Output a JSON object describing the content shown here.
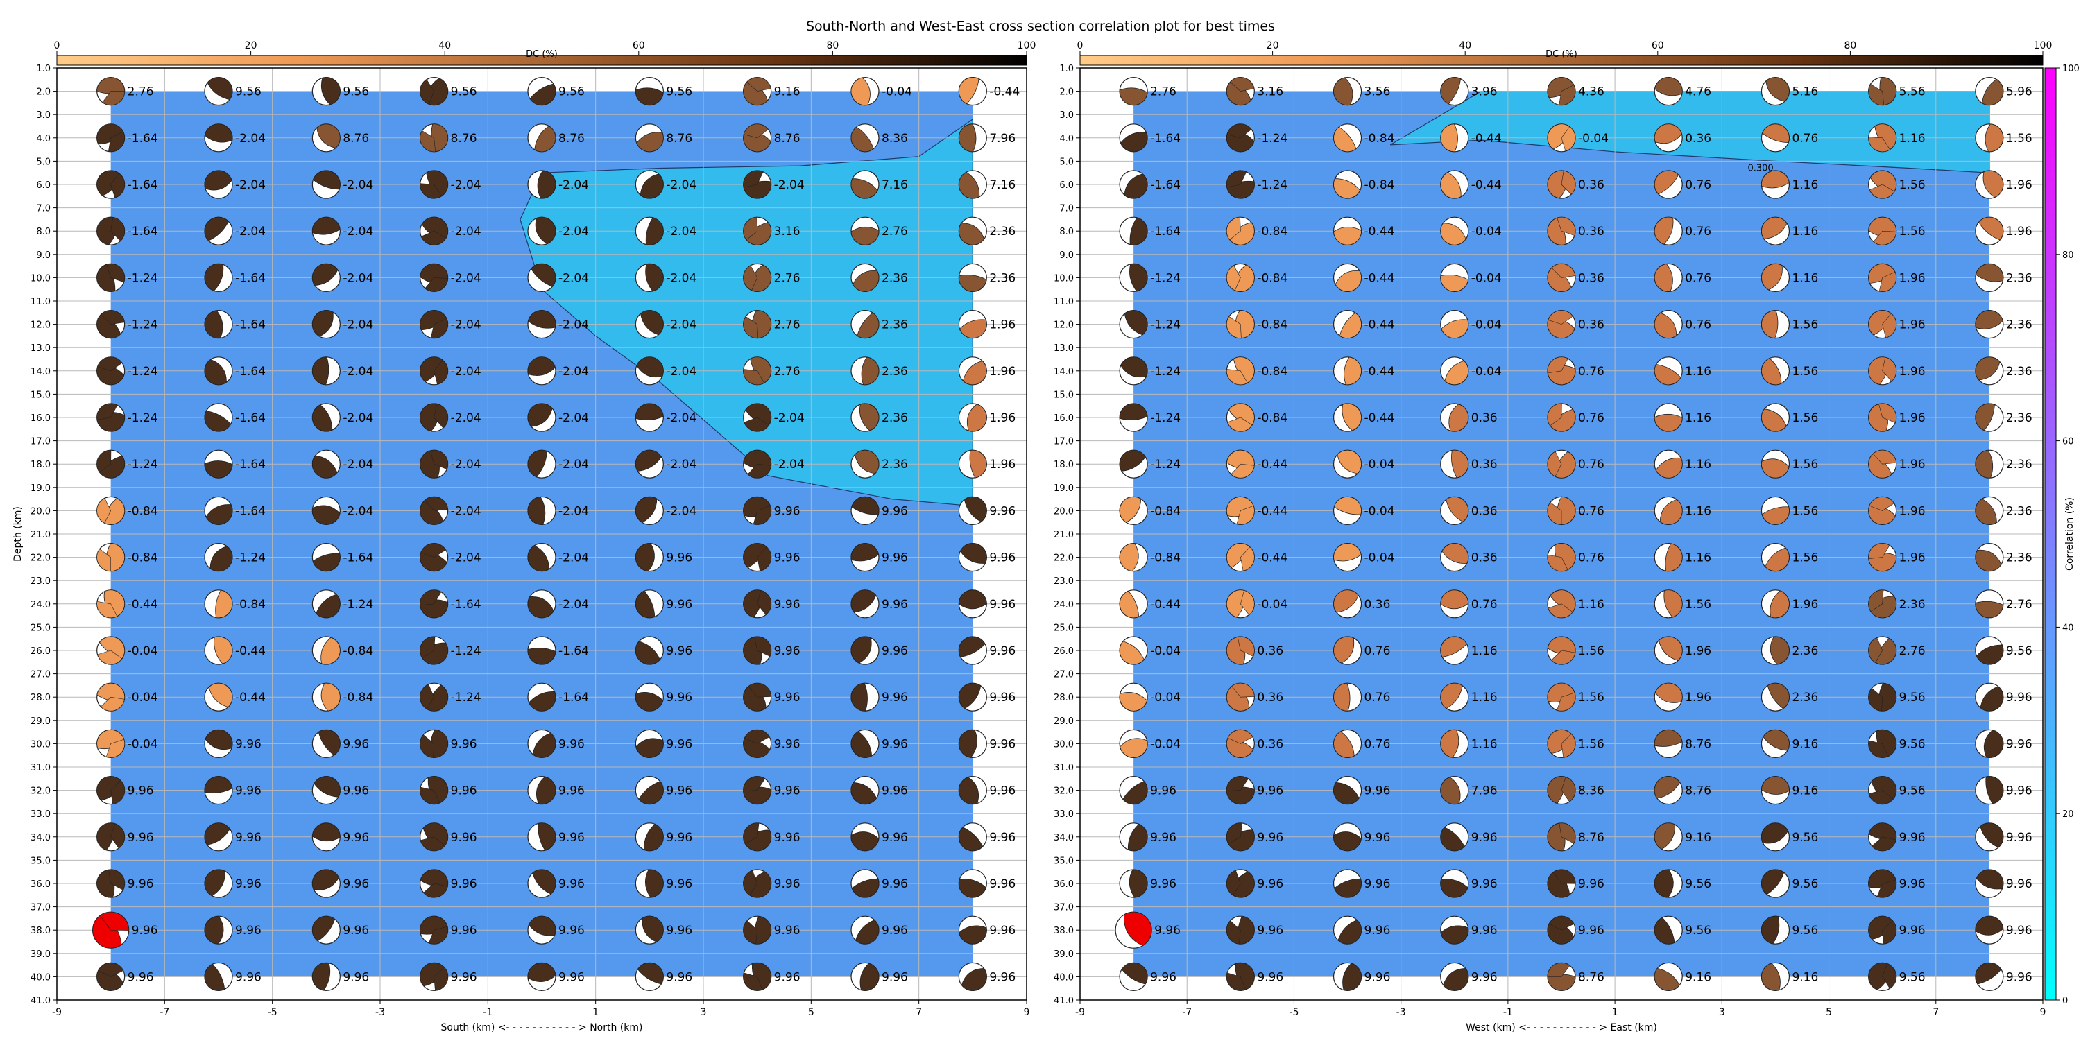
{
  "title": "South-North and West-East cross section correlation plot for best times",
  "colors": {
    "background_low": "#5599ee",
    "background_high": "#33bbee",
    "grid": "#b8b8b8",
    "beachball_outline": "#222222",
    "best_solution": "#ee0000"
  },
  "dc_colorbar": {
    "label": "DC (%)",
    "ticks": [
      "0",
      "20",
      "40",
      "60",
      "80",
      "100"
    ],
    "stops": [
      "#ffcc88",
      "#ee9955",
      "#aa6633",
      "#663311",
      "#000000"
    ]
  },
  "correlation_colorbar": {
    "label": "Correlation (%)",
    "ticks": [
      "0",
      "20",
      "40",
      "60",
      "80",
      "100"
    ],
    "stops": [
      "#00ffff",
      "#ff00ff"
    ]
  },
  "chart_data": [
    {
      "type": "heatmap",
      "name": "south-north",
      "xlabel": "South (km) <- - - - - - - - - - - > North (km)",
      "ylabel": "Depth (km)",
      "xlim": [
        -9,
        9
      ],
      "ylim": [
        41,
        1
      ],
      "xticks": [
        "-9",
        "-7",
        "-5",
        "-3",
        "-1",
        "1",
        "3",
        "5",
        "7",
        "9"
      ],
      "yticks": [
        "1.0",
        "2.0",
        "3.0",
        "4.0",
        "5.0",
        "6.0",
        "7.0",
        "8.0",
        "9.0",
        "10.0",
        "11.0",
        "12.0",
        "13.0",
        "14.0",
        "15.0",
        "16.0",
        "17.0",
        "18.0",
        "19.0",
        "20.0",
        "21.0",
        "22.0",
        "23.0",
        "24.0",
        "25.0",
        "26.0",
        "27.0",
        "28.0",
        "29.0",
        "30.0",
        "31.0",
        "32.0",
        "33.0",
        "34.0",
        "35.0",
        "36.0",
        "37.0",
        "38.0",
        "39.0",
        "40.0",
        "41.0"
      ],
      "x_positions": [
        -8,
        -6,
        -4,
        -2,
        0,
        2,
        4,
        6,
        8
      ],
      "depths": [
        2,
        4,
        6,
        8,
        10,
        12,
        14,
        16,
        18,
        20,
        22,
        24,
        26,
        28,
        30,
        32,
        34,
        36,
        38,
        40
      ],
      "contour_label": "",
      "contour_polygon": [
        [
          8,
          3.2
        ],
        [
          7,
          4.8
        ],
        [
          4.8,
          5.2
        ],
        [
          2.2,
          5.3
        ],
        [
          0,
          5.5
        ],
        [
          -0.4,
          7.5
        ],
        [
          0,
          10.5
        ],
        [
          1,
          12.5
        ],
        [
          2.2,
          14.5
        ],
        [
          3.2,
          16.5
        ],
        [
          4.2,
          18.5
        ],
        [
          6.5,
          19.5
        ],
        [
          8,
          19.8
        ]
      ],
      "labels": [
        [
          "2.76",
          "9.56",
          "9.56",
          "9.56",
          "9.56",
          "9.56",
          "9.16",
          "-0.04",
          "-0.44"
        ],
        [
          "-1.64",
          "-2.04",
          "8.76",
          "8.76",
          "8.76",
          "8.76",
          "8.76",
          "8.36",
          "7.96"
        ],
        [
          "-1.64",
          "-2.04",
          "-2.04",
          "-2.04",
          "-2.04",
          "-2.04",
          "-2.04",
          "7.16",
          "7.16"
        ],
        [
          "-1.64",
          "-2.04",
          "-2.04",
          "-2.04",
          "-2.04",
          "-2.04",
          "3.16",
          "2.76",
          "2.36"
        ],
        [
          "-1.24",
          "-1.64",
          "-2.04",
          "-2.04",
          "-2.04",
          "-2.04",
          "2.76",
          "2.36",
          "2.36"
        ],
        [
          "-1.24",
          "-1.64",
          "-2.04",
          "-2.04",
          "-2.04",
          "-2.04",
          "2.76",
          "2.36",
          "1.96"
        ],
        [
          "-1.24",
          "-1.64",
          "-2.04",
          "-2.04",
          "-2.04",
          "-2.04",
          "2.76",
          "2.36",
          "1.96"
        ],
        [
          "-1.24",
          "-1.64",
          "-2.04",
          "-2.04",
          "-2.04",
          "-2.04",
          "-2.04",
          "2.36",
          "1.96"
        ],
        [
          "-1.24",
          "-1.64",
          "-2.04",
          "-2.04",
          "-2.04",
          "-2.04",
          "-2.04",
          "2.36",
          "1.96"
        ],
        [
          "-0.84",
          "-1.64",
          "-2.04",
          "-2.04",
          "-2.04",
          "-2.04",
          "9.96",
          "9.96",
          "9.96"
        ],
        [
          "-0.84",
          "-1.24",
          "-1.64",
          "-2.04",
          "-2.04",
          "9.96",
          "9.96",
          "9.96",
          "9.96"
        ],
        [
          "-0.44",
          "-0.84",
          "-1.24",
          "-1.64",
          "-2.04",
          "9.96",
          "9.96",
          "9.96",
          "9.96"
        ],
        [
          "-0.04",
          "-0.44",
          "-0.84",
          "-1.24",
          "-1.64",
          "9.96",
          "9.96",
          "9.96",
          "9.96"
        ],
        [
          "-0.04",
          "-0.44",
          "-0.84",
          "-1.24",
          "-1.64",
          "9.96",
          "9.96",
          "9.96",
          "9.96"
        ],
        [
          "-0.04",
          "9.96",
          "9.96",
          "9.96",
          "9.96",
          "9.96",
          "9.96",
          "9.96",
          "9.96"
        ],
        [
          "9.96",
          "9.96",
          "9.96",
          "9.96",
          "9.96",
          "9.96",
          "9.96",
          "9.96",
          "9.96"
        ],
        [
          "9.96",
          "9.96",
          "9.96",
          "9.96",
          "9.96",
          "9.96",
          "9.96",
          "9.96",
          "9.96"
        ],
        [
          "9.96",
          "9.96",
          "9.96",
          "9.96",
          "9.96",
          "9.96",
          "9.96",
          "9.96",
          "9.96"
        ],
        [
          "9.96",
          "9.96",
          "9.96",
          "9.96",
          "9.96",
          "9.96",
          "9.96",
          "9.96",
          "9.96"
        ],
        [
          "9.96",
          "9.96",
          "9.96",
          "9.96",
          "9.96",
          "9.96",
          "9.96",
          "9.96",
          "9.96"
        ]
      ],
      "best_solution": {
        "x": -8,
        "depth": 38
      }
    },
    {
      "type": "heatmap",
      "name": "west-east",
      "xlabel": "West (km) <- - - - - - - - - - - > East (km)",
      "ylabel": "",
      "xlim": [
        -9,
        9
      ],
      "ylim": [
        41,
        1
      ],
      "xticks": [
        "-9",
        "-7",
        "-5",
        "-3",
        "-1",
        "1",
        "3",
        "5",
        "7",
        "9"
      ],
      "yticks": [
        "1.0",
        "2.0",
        "3.0",
        "4.0",
        "5.0",
        "6.0",
        "7.0",
        "8.0",
        "9.0",
        "10.0",
        "11.0",
        "12.0",
        "13.0",
        "14.0",
        "15.0",
        "16.0",
        "17.0",
        "18.0",
        "19.0",
        "20.0",
        "21.0",
        "22.0",
        "23.0",
        "24.0",
        "25.0",
        "26.0",
        "27.0",
        "28.0",
        "29.0",
        "30.0",
        "31.0",
        "32.0",
        "33.0",
        "34.0",
        "35.0",
        "36.0",
        "37.0",
        "38.0",
        "39.0",
        "40.0",
        "41.0"
      ],
      "x_positions": [
        -8,
        -6,
        -4,
        -2,
        0,
        2,
        4,
        6,
        8
      ],
      "depths": [
        2,
        4,
        6,
        8,
        10,
        12,
        14,
        16,
        18,
        20,
        22,
        24,
        26,
        28,
        30,
        32,
        34,
        36,
        38,
        40
      ],
      "contour_label": "0.300",
      "contour_polygon": [
        [
          8,
          2
        ],
        [
          -1.5,
          2
        ],
        [
          -3.2,
          4.3
        ],
        [
          -1.5,
          4.1
        ],
        [
          1,
          4.6
        ],
        [
          4,
          5
        ],
        [
          6.5,
          5.3
        ],
        [
          8,
          5.5
        ]
      ],
      "labels": [
        [
          "2.76",
          "3.16",
          "3.56",
          "3.96",
          "4.36",
          "4.76",
          "5.16",
          "5.56",
          "5.96"
        ],
        [
          "-1.64",
          "-1.24",
          "-0.84",
          "-0.44",
          "-0.04",
          "0.36",
          "0.76",
          "1.16",
          "1.56"
        ],
        [
          "-1.64",
          "-1.24",
          "-0.84",
          "-0.44",
          "0.36",
          "0.76",
          "1.16",
          "1.56",
          "1.96"
        ],
        [
          "-1.64",
          "-0.84",
          "-0.44",
          "-0.04",
          "0.36",
          "0.76",
          "1.16",
          "1.56",
          "1.96"
        ],
        [
          "-1.24",
          "-0.84",
          "-0.44",
          "-0.04",
          "0.36",
          "0.76",
          "1.16",
          "1.96",
          "2.36"
        ],
        [
          "-1.24",
          "-0.84",
          "-0.44",
          "-0.04",
          "0.36",
          "0.76",
          "1.56",
          "1.96",
          "2.36"
        ],
        [
          "-1.24",
          "-0.84",
          "-0.44",
          "-0.04",
          "0.76",
          "1.16",
          "1.56",
          "1.96",
          "2.36"
        ],
        [
          "-1.24",
          "-0.84",
          "-0.44",
          "0.36",
          "0.76",
          "1.16",
          "1.56",
          "1.96",
          "2.36"
        ],
        [
          "-1.24",
          "-0.44",
          "-0.04",
          "0.36",
          "0.76",
          "1.16",
          "1.56",
          "1.96",
          "2.36"
        ],
        [
          "-0.84",
          "-0.44",
          "-0.04",
          "0.36",
          "0.76",
          "1.16",
          "1.56",
          "1.96",
          "2.36"
        ],
        [
          "-0.84",
          "-0.44",
          "-0.04",
          "0.36",
          "0.76",
          "1.16",
          "1.56",
          "1.96",
          "2.36"
        ],
        [
          "-0.44",
          "-0.04",
          "0.36",
          "0.76",
          "1.16",
          "1.56",
          "1.96",
          "2.36",
          "2.76"
        ],
        [
          "-0.04",
          "0.36",
          "0.76",
          "1.16",
          "1.56",
          "1.96",
          "2.36",
          "2.76",
          "9.56"
        ],
        [
          "-0.04",
          "0.36",
          "0.76",
          "1.16",
          "1.56",
          "1.96",
          "2.36",
          "9.56",
          "9.96"
        ],
        [
          "-0.04",
          "0.36",
          "0.76",
          "1.16",
          "1.56",
          "8.76",
          "9.16",
          "9.56",
          "9.96"
        ],
        [
          "9.96",
          "9.96",
          "9.96",
          "7.96",
          "8.36",
          "8.76",
          "9.16",
          "9.56",
          "9.96"
        ],
        [
          "9.96",
          "9.96",
          "9.96",
          "9.96",
          "8.76",
          "9.16",
          "9.56",
          "9.96",
          "9.96"
        ],
        [
          "9.96",
          "9.96",
          "9.96",
          "9.96",
          "9.96",
          "9.56",
          "9.56",
          "9.96",
          "9.96"
        ],
        [
          "9.96",
          "9.96",
          "9.96",
          "9.96",
          "9.96",
          "9.56",
          "9.56",
          "9.96",
          "9.96"
        ],
        [
          "9.96",
          "9.96",
          "9.96",
          "9.96",
          "8.76",
          "9.16",
          "9.16",
          "9.56",
          "9.96"
        ]
      ],
      "best_solution": {
        "x": -8,
        "depth": 38
      }
    }
  ]
}
